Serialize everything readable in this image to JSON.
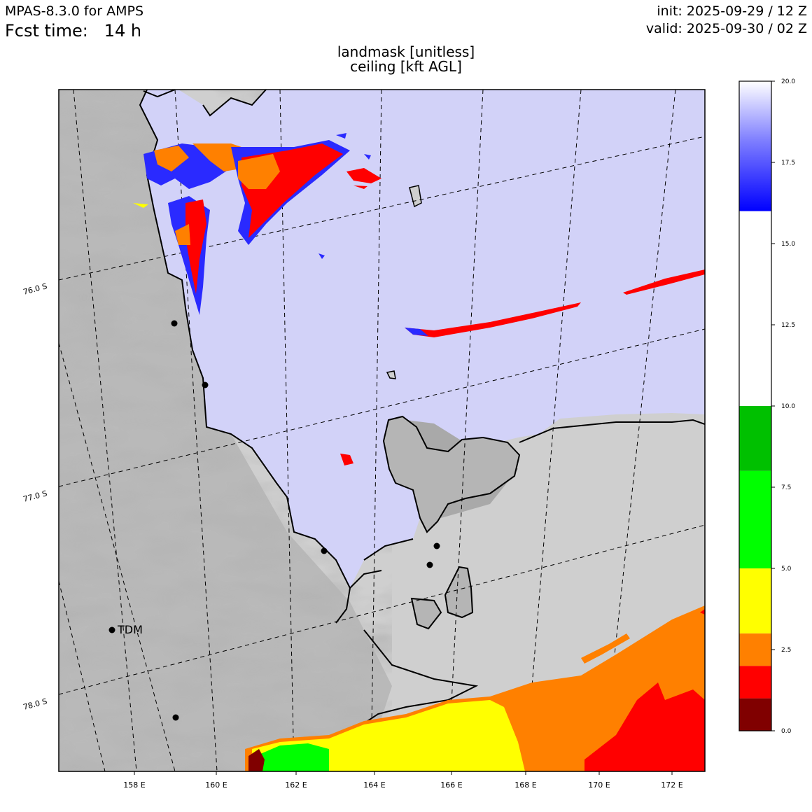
{
  "header": {
    "model": "MPAS-8.3.0 for AMPS",
    "fcst_label": "Fcst time:",
    "fcst_value": "14 h",
    "init": "init: 2025-09-29 / 12 Z",
    "valid": "valid: 2025-09-30 / 02 Z"
  },
  "titles": {
    "line1": "landmask [unitless]",
    "line2": "ceiling [kft AGL]"
  },
  "map": {
    "lon_labels": [
      "158 E",
      "160 E",
      "162 E",
      "164 E",
      "166 E",
      "168 E",
      "170 E",
      "172 E"
    ],
    "lat_labels": [
      "76.0 S",
      "77.0 S",
      "78.0 S"
    ],
    "station_label": "TDM",
    "colors": {
      "ocean": "#d2d2f8",
      "land": "#cfcfcf",
      "coast": "#000000"
    }
  },
  "colorbar": {
    "tick_labels": [
      "0.0",
      "2.5",
      "5.0",
      "7.5",
      "10.0",
      "12.5",
      "15.0",
      "17.5",
      "20.0"
    ],
    "bands": [
      {
        "from": 0,
        "to": 1,
        "color": "#800000"
      },
      {
        "from": 1,
        "to": 2,
        "color": "#ff0000"
      },
      {
        "from": 2,
        "to": 3,
        "color": "#ff8000"
      },
      {
        "from": 3,
        "to": 5,
        "color": "#ffff00"
      },
      {
        "from": 5,
        "to": 8,
        "color": "#00ff00"
      },
      {
        "from": 8,
        "to": 10,
        "color": "#00c000"
      },
      {
        "from": 10,
        "to": 16,
        "color": "#ffffff"
      },
      {
        "from": 16,
        "to": 20,
        "color": "gradient-blue-white"
      }
    ]
  }
}
